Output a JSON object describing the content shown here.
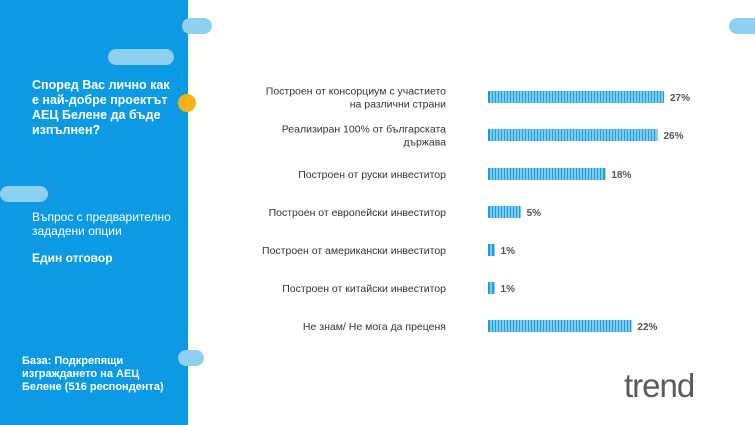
{
  "sidebar": {
    "question": "Според Вас лично как е най-добре проектът АЕЦ Белене да бъде изпълнен?",
    "question_type": "Въпрос с предварително зададени опции",
    "answer_mode": "Един отговор",
    "base": "База: Подкрепящи изграждането на АЕЦ Белене (516 респондента)",
    "colors": {
      "background": "#0d9ae4",
      "pill": "#8fd0f2",
      "dot": "#f7b316"
    }
  },
  "logo": {
    "text": "trend"
  },
  "chart_data": {
    "type": "bar",
    "orientation": "horizontal",
    "bar_color": "#1a9ee0",
    "categories": [
      [
        "Построен от консорциум с участието",
        "на различни страни"
      ],
      [
        "Реализиран 100% от българската",
        "държава"
      ],
      [
        "Построен от руски инвеститор"
      ],
      [
        "Построен от европейски инвеститор"
      ],
      [
        "Построен от американски инвеститор"
      ],
      [
        "Построен от китайски инвеститор"
      ],
      [
        "Не знам/ Не мога да преценя"
      ]
    ],
    "values": [
      27,
      26,
      18,
      5,
      1,
      1,
      22
    ],
    "value_labels": [
      "27%",
      "26%",
      "18%",
      "5%",
      "1%",
      "1%",
      "22%"
    ],
    "xlim": [
      0,
      27
    ]
  }
}
